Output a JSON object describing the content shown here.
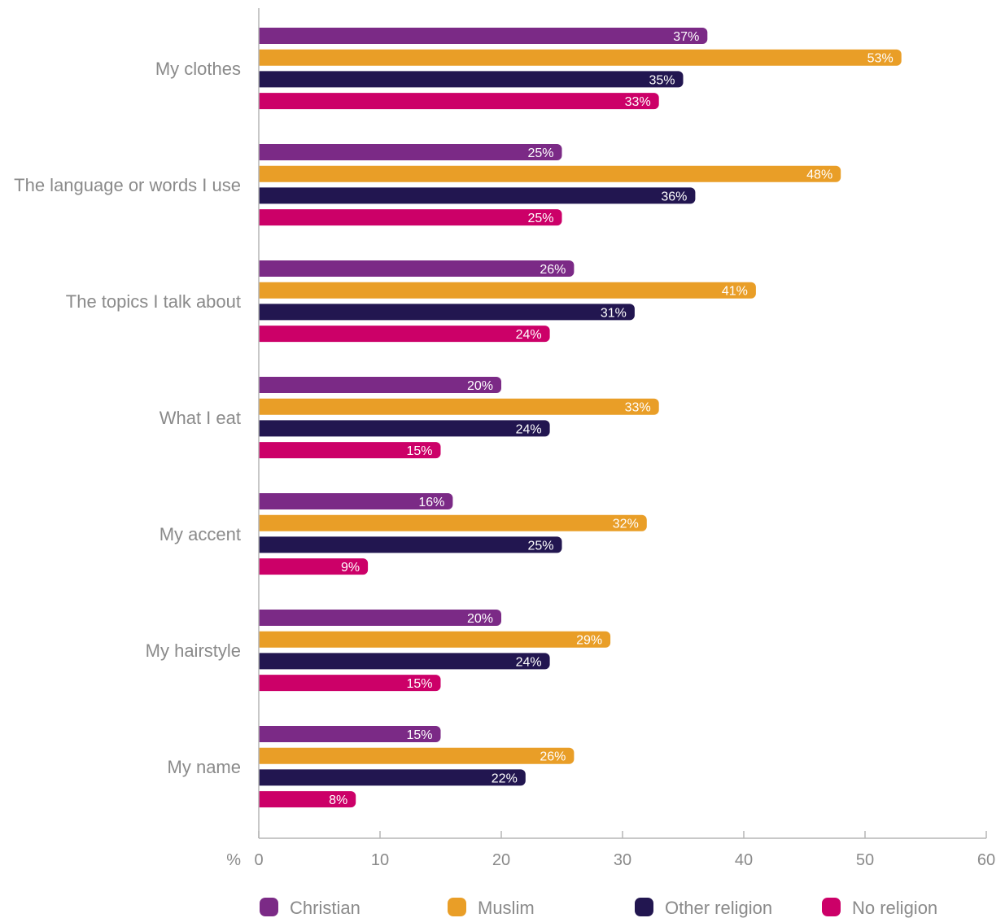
{
  "chart_data": {
    "type": "bar",
    "orientation": "horizontal",
    "categories": [
      "My clothes",
      "The language or words I use",
      "The topics I talk about",
      "What I eat",
      "My accent",
      "My hairstyle",
      "My name"
    ],
    "series": [
      {
        "name": "Christian",
        "color": "#7b2a86",
        "values": [
          37,
          25,
          26,
          20,
          16,
          20,
          15
        ]
      },
      {
        "name": "Muslim",
        "color": "#e99e27",
        "values": [
          53,
          48,
          41,
          33,
          32,
          29,
          26
        ]
      },
      {
        "name": "Other religion",
        "color": "#221650",
        "values": [
          35,
          36,
          31,
          24,
          25,
          24,
          22
        ]
      },
      {
        "name": "No religion",
        "color": "#cc0068",
        "values": [
          33,
          25,
          24,
          15,
          9,
          15,
          8
        ]
      }
    ],
    "value_suffix": "%",
    "xaxis_unit": "%",
    "xlim": [
      0,
      60
    ],
    "xticks": [
      0,
      10,
      20,
      30,
      40,
      50,
      60
    ],
    "grid": false,
    "legend_position": "bottom"
  }
}
